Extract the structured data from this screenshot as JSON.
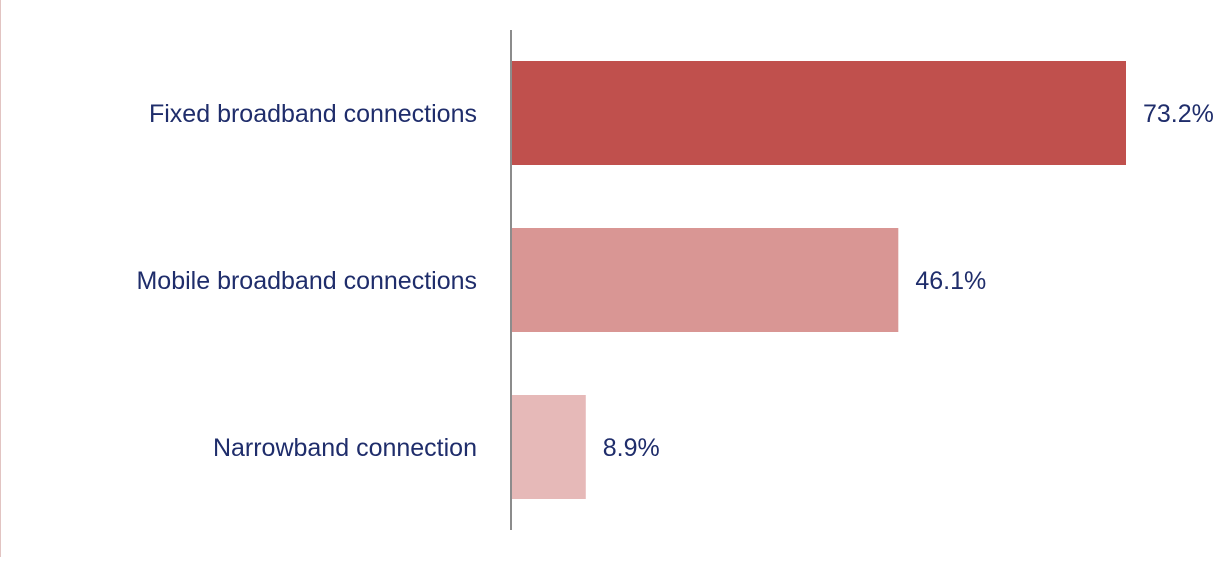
{
  "chart_data": {
    "type": "bar",
    "orientation": "horizontal",
    "title": "",
    "xlabel": "",
    "ylabel": "",
    "categories": [
      "Fixed broadband connections",
      "Mobile broadband connections",
      "Narrowband connection"
    ],
    "values": [
      73.2,
      46.1,
      8.9
    ],
    "value_labels": [
      "73.2%",
      "46.1%",
      "8.9%"
    ],
    "unit": "%",
    "xlim": [
      0,
      85
    ],
    "grid": false,
    "legend": "none",
    "colors": {
      "bars": [
        "#c0504d",
        "#d99694",
        "#e6b9b8"
      ],
      "text": "#1f2d6b",
      "axis": "#8c8c8c",
      "left_border": "#e2c4c2"
    }
  }
}
